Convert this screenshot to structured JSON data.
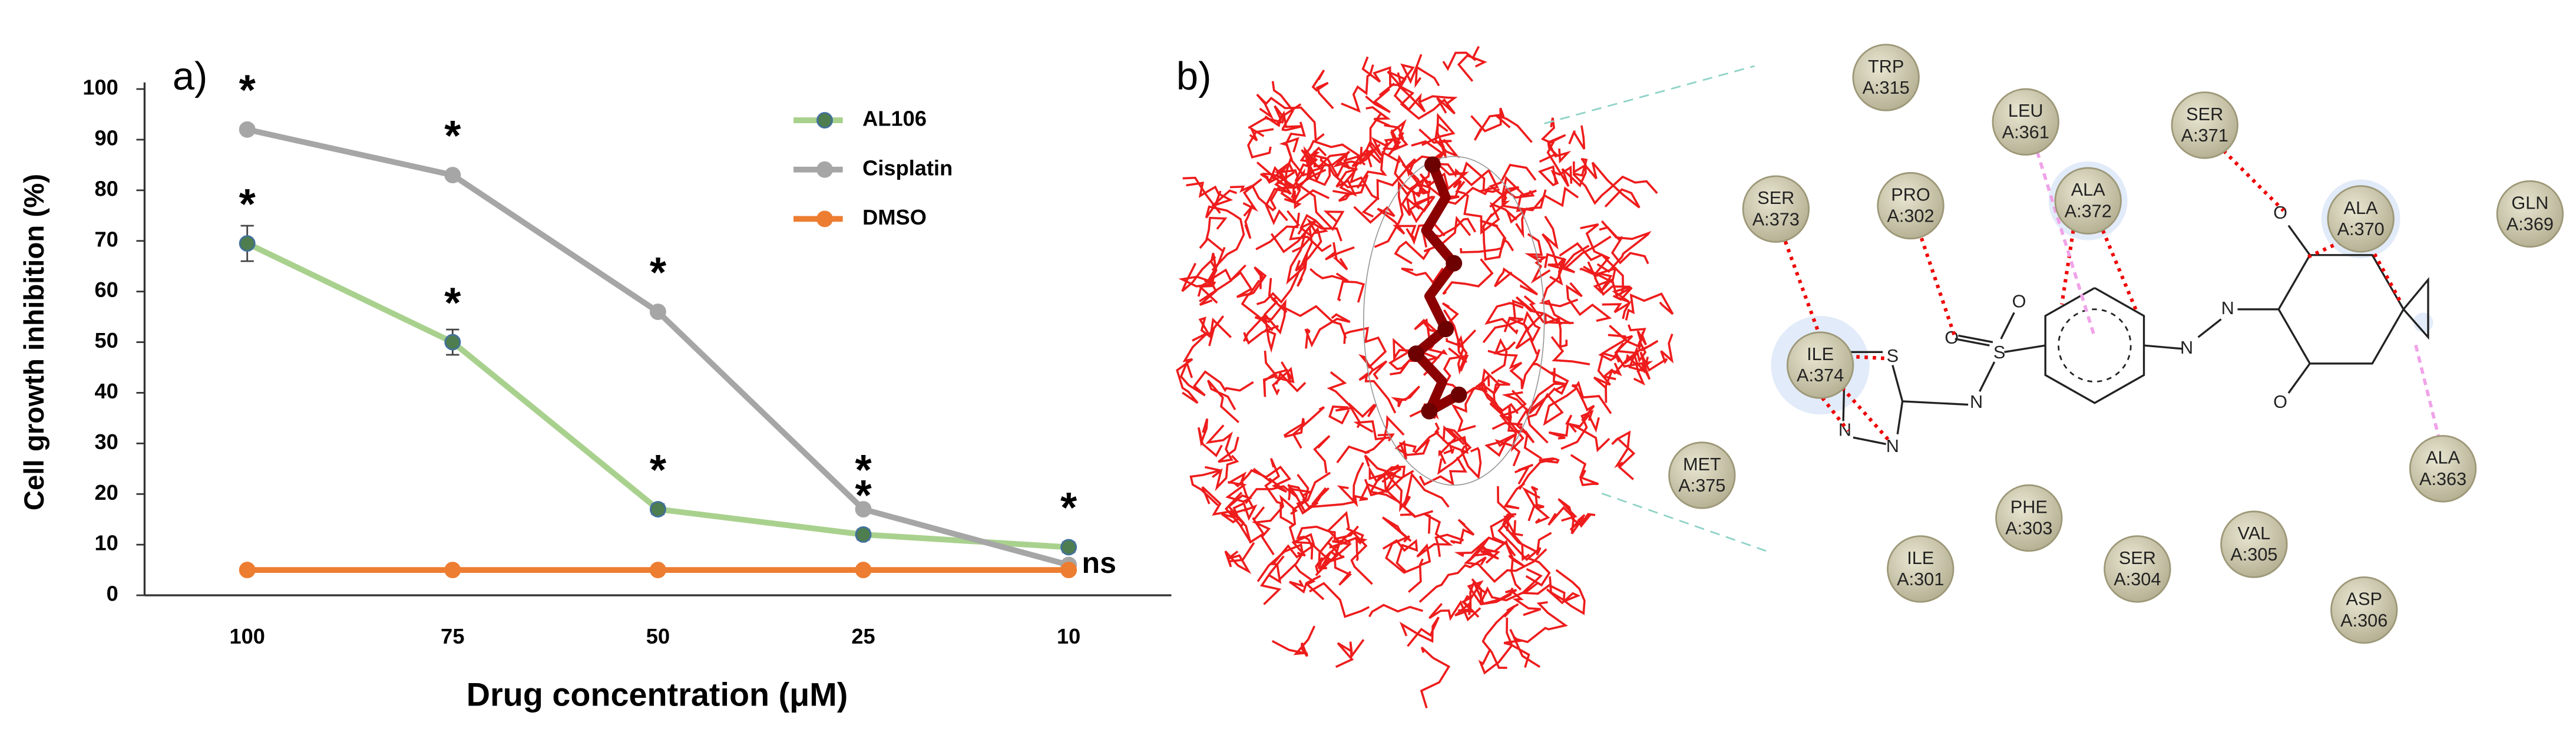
{
  "chart_data": {
    "type": "line",
    "panel_label": "a)",
    "x_label": "Drug concentration (μM)",
    "y_label": "Cell growth inhibition (%)",
    "categories": [
      "100",
      "75",
      "50",
      "25",
      "10"
    ],
    "series": [
      {
        "name": "AL106",
        "color": "#a9d18e",
        "marker_color": "#4e7d4f",
        "values": [
          69.5,
          50,
          17,
          12,
          9.5
        ],
        "errors": [
          3.5,
          2.5,
          1,
          1,
          1
        ],
        "labels": [
          "*",
          "*",
          "*",
          "*",
          "*"
        ]
      },
      {
        "name": "Cisplatin",
        "color": "#a6a6a6",
        "marker_color": "#a6a6a6",
        "values": [
          92,
          83,
          56,
          17,
          6
        ],
        "labels": [
          "*",
          "*",
          "*",
          "*",
          "ns"
        ]
      },
      {
        "name": "DMSO",
        "color": "#ed7d31",
        "marker_color": "#ed7d31",
        "values": [
          5,
          5,
          5,
          5,
          5
        ]
      }
    ],
    "ylim": [
      0,
      100
    ],
    "yticks": [
      0,
      10,
      20,
      30,
      40,
      50,
      60,
      70,
      80,
      90,
      100
    ],
    "grid": false,
    "legend": "upper right"
  },
  "diagram": {
    "panel_label": "b)",
    "residues": [
      {
        "name": "TRP",
        "id": "A:315"
      },
      {
        "name": "LEU",
        "id": "A:361"
      },
      {
        "name": "SER",
        "id": "A:371"
      },
      {
        "name": "SER",
        "id": "A:373"
      },
      {
        "name": "PRO",
        "id": "A:302"
      },
      {
        "name": "ALA",
        "id": "A:372"
      },
      {
        "name": "ALA",
        "id": "A:370"
      },
      {
        "name": "GLN",
        "id": "A:369"
      },
      {
        "name": "ILE",
        "id": "A:374"
      },
      {
        "name": "MET",
        "id": "A:375"
      },
      {
        "name": "ALA",
        "id": "A:363"
      },
      {
        "name": "PHE",
        "id": "A:303"
      },
      {
        "name": "VAL",
        "id": "A:305"
      },
      {
        "name": "ILE",
        "id": "A:301"
      },
      {
        "name": "SER",
        "id": "A:304"
      },
      {
        "name": "ASP",
        "id": "A:306"
      }
    ],
    "atoms": [
      "O",
      "O",
      "S",
      "N",
      "S",
      "N",
      "N",
      "N",
      "N",
      "O",
      "O"
    ]
  }
}
